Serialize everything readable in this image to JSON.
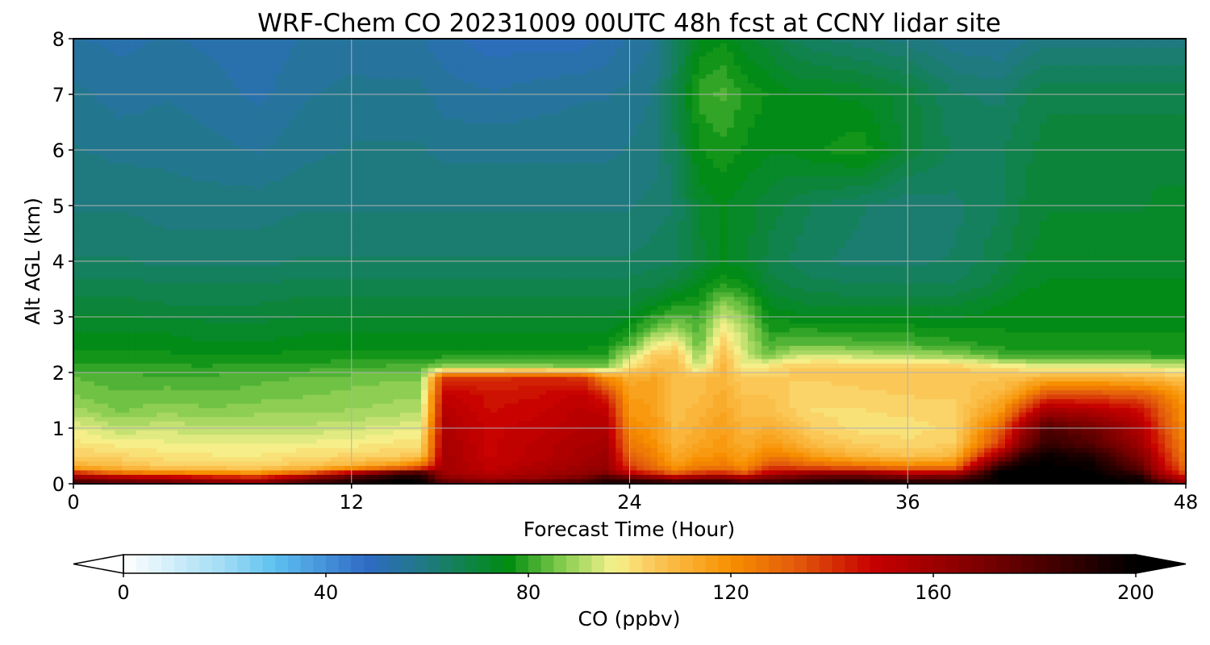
{
  "chart_data": {
    "type": "heatmap",
    "title": "WRF-Chem CO  20231009 00UTC 48h fcst at CCNY lidar site",
    "xlabel": "Forecast Time (Hour)",
    "ylabel": "Alt AGL (km)",
    "xlim": [
      0,
      48
    ],
    "ylim": [
      0,
      8
    ],
    "x_ticks": [
      0,
      12,
      24,
      36,
      48
    ],
    "y_ticks": [
      0,
      1,
      2,
      3,
      4,
      5,
      6,
      7,
      8
    ],
    "grid": true,
    "colorbar": {
      "label": "CO  (ppbv)",
      "min": 0,
      "max": 200,
      "ticks": [
        0,
        40,
        80,
        120,
        160,
        200
      ],
      "extend": "both",
      "colors": [
        {
          "v": 0,
          "c": "#ffffff"
        },
        {
          "v": 20,
          "c": "#9fdcf4"
        },
        {
          "v": 30,
          "c": "#5ec0f0"
        },
        {
          "v": 48,
          "c": "#2f6bc6"
        },
        {
          "v": 60,
          "c": "#1f7a80"
        },
        {
          "v": 76,
          "c": "#008c10"
        },
        {
          "v": 86,
          "c": "#7cc84a"
        },
        {
          "v": 97,
          "c": "#f6f28c"
        },
        {
          "v": 104,
          "c": "#fbcc5e"
        },
        {
          "v": 120,
          "c": "#f78f00"
        },
        {
          "v": 133,
          "c": "#e25a0c"
        },
        {
          "v": 148,
          "c": "#c80000"
        },
        {
          "v": 170,
          "c": "#7a0000"
        },
        {
          "v": 200,
          "c": "#000000"
        }
      ]
    },
    "x_hours": [
      0,
      2,
      4,
      6,
      8,
      10,
      12,
      14,
      15,
      16,
      18,
      20,
      22,
      23,
      24,
      25,
      26,
      27,
      28,
      29,
      30,
      31,
      32,
      34,
      36,
      38,
      40,
      41,
      42,
      44,
      46,
      47,
      48
    ],
    "alt_km": [
      0,
      0.1,
      0.2,
      0.3,
      0.5,
      0.7,
      1.0,
      1.3,
      1.6,
      1.9,
      2.1,
      2.3,
      2.5,
      2.8,
      3.2,
      3.6,
      4.0,
      5.0,
      6.0,
      7.0,
      8.0
    ],
    "co_ppbv": [
      [
        190,
        182,
        178,
        172,
        168,
        185,
        195,
        200,
        200,
        180,
        175,
        180,
        190,
        195,
        200,
        198,
        196,
        198,
        196,
        190,
        190,
        192,
        198,
        198,
        196,
        195,
        200,
        200,
        200,
        200,
        200,
        185,
        160
      ],
      [
        165,
        158,
        156,
        150,
        145,
        165,
        185,
        198,
        196,
        165,
        158,
        162,
        170,
        185,
        175,
        168,
        158,
        165,
        170,
        160,
        172,
        174,
        180,
        182,
        176,
        178,
        200,
        200,
        200,
        200,
        195,
        165,
        150
      ],
      [
        140,
        126,
        122,
        120,
        118,
        130,
        150,
        175,
        180,
        160,
        152,
        158,
        162,
        168,
        150,
        140,
        130,
        138,
        140,
        132,
        150,
        155,
        160,
        160,
        150,
        152,
        200,
        200,
        200,
        200,
        185,
        155,
        135
      ],
      [
        112,
        108,
        104,
        103,
        103,
        106,
        112,
        120,
        130,
        158,
        150,
        155,
        160,
        162,
        138,
        128,
        118,
        124,
        126,
        120,
        136,
        135,
        132,
        128,
        124,
        125,
        190,
        200,
        200,
        198,
        176,
        150,
        128
      ],
      [
        104,
        102,
        100,
        99,
        99,
        101,
        102,
        104,
        105,
        158,
        148,
        152,
        158,
        160,
        132,
        124,
        113,
        118,
        120,
        115,
        124,
        122,
        116,
        110,
        106,
        110,
        162,
        190,
        198,
        192,
        168,
        145,
        124
      ],
      [
        100,
        98,
        97,
        96,
        96,
        97,
        98,
        100,
        100,
        157,
        148,
        152,
        156,
        158,
        126,
        120,
        110,
        114,
        118,
        112,
        117,
        114,
        108,
        104,
        102,
        104,
        140,
        170,
        188,
        180,
        160,
        140,
        122
      ],
      [
        96,
        92,
        93,
        92,
        92,
        92,
        93,
        95,
        96,
        155,
        148,
        150,
        154,
        155,
        122,
        118,
        108,
        112,
        116,
        110,
        112,
        108,
        103,
        100,
        100,
        102,
        130,
        160,
        180,
        172,
        155,
        136,
        120
      ],
      [
        90,
        86,
        88,
        87,
        88,
        88,
        89,
        90,
        91,
        153,
        146,
        148,
        152,
        150,
        118,
        116,
        108,
        110,
        114,
        108,
        108,
        104,
        101,
        101,
        102,
        103,
        118,
        140,
        160,
        155,
        148,
        132,
        118
      ],
      [
        86,
        84,
        85,
        84,
        85,
        86,
        87,
        88,
        88,
        150,
        145,
        146,
        150,
        140,
        116,
        116,
        108,
        108,
        112,
        106,
        106,
        103,
        102,
        103,
        104,
        104,
        110,
        120,
        135,
        135,
        132,
        125,
        115
      ],
      [
        84,
        82,
        82,
        82,
        83,
        84,
        85,
        86,
        86,
        140,
        140,
        142,
        140,
        120,
        112,
        114,
        108,
        108,
        110,
        104,
        104,
        104,
        104,
        105,
        106,
        106,
        106,
        108,
        112,
        112,
        110,
        108,
        106
      ],
      [
        80,
        80,
        79,
        79,
        80,
        80,
        81,
        82,
        82,
        88,
        88,
        88,
        86,
        86,
        100,
        108,
        108,
        92,
        110,
        96,
        100,
        104,
        104,
        105,
        105,
        104,
        100,
        98,
        96,
        96,
        96,
        95,
        94
      ],
      [
        77,
        77,
        77,
        76,
        77,
        77,
        77,
        77,
        77,
        78,
        78,
        78,
        78,
        80,
        92,
        104,
        106,
        88,
        108,
        94,
        86,
        92,
        94,
        92,
        90,
        88,
        82,
        80,
        80,
        80,
        80,
        79,
        79
      ],
      [
        75,
        75,
        75,
        74,
        74,
        75,
        75,
        75,
        75,
        75,
        75,
        75,
        75,
        76,
        82,
        96,
        100,
        84,
        104,
        92,
        82,
        84,
        84,
        83,
        82,
        80,
        78,
        77,
        77,
        77,
        77,
        77,
        77
      ],
      [
        73,
        73,
        73,
        72,
        72,
        73,
        73,
        73,
        73,
        73,
        73,
        73,
        73,
        73,
        76,
        84,
        88,
        82,
        98,
        90,
        78,
        78,
        78,
        77,
        77,
        76,
        76,
        76,
        76,
        76,
        76,
        76,
        76
      ],
      [
        70,
        70,
        69,
        69,
        69,
        70,
        70,
        70,
        70,
        70,
        70,
        70,
        70,
        70,
        70,
        74,
        78,
        79,
        88,
        84,
        74,
        72,
        71,
        71,
        71,
        71,
        74,
        75,
        75,
        75,
        75,
        75,
        75
      ],
      [
        67,
        67,
        66,
        66,
        66,
        67,
        67,
        67,
        67,
        67,
        67,
        67,
        67,
        67,
        67,
        68,
        70,
        74,
        78,
        76,
        70,
        68,
        67,
        66,
        66,
        66,
        70,
        73,
        74,
        74,
        74,
        74,
        74
      ],
      [
        64,
        64,
        63,
        63,
        63,
        64,
        64,
        64,
        64,
        64,
        64,
        64,
        64,
        64,
        64,
        65,
        66,
        70,
        74,
        72,
        68,
        66,
        64,
        63,
        63,
        64,
        68,
        71,
        73,
        73,
        73,
        73,
        73
      ],
      [
        61,
        61,
        60,
        60,
        60,
        61,
        61,
        61,
        61,
        61,
        61,
        61,
        61,
        61,
        61,
        62,
        64,
        72,
        74,
        72,
        70,
        68,
        66,
        64,
        62,
        63,
        66,
        69,
        71,
        71,
        71,
        72,
        72
      ],
      [
        59,
        58,
        58,
        57,
        56,
        58,
        59,
        59,
        59,
        58,
        58,
        58,
        58,
        58,
        59,
        60,
        66,
        76,
        78,
        76,
        74,
        74,
        76,
        78,
        70,
        66,
        66,
        68,
        70,
        70,
        70,
        70,
        70
      ],
      [
        57,
        55,
        56,
        55,
        53,
        56,
        57,
        57,
        57,
        55,
        54,
        55,
        56,
        56,
        57,
        59,
        68,
        80,
        82,
        78,
        76,
        74,
        74,
        73,
        70,
        64,
        63,
        66,
        68,
        68,
        68,
        68,
        68
      ],
      [
        54,
        53,
        54,
        53,
        52,
        54,
        55,
        54,
        54,
        52,
        50,
        50,
        50,
        52,
        54,
        56,
        64,
        74,
        76,
        72,
        70,
        66,
        64,
        62,
        60,
        57,
        56,
        58,
        60,
        60,
        60,
        60,
        60
      ]
    ]
  }
}
